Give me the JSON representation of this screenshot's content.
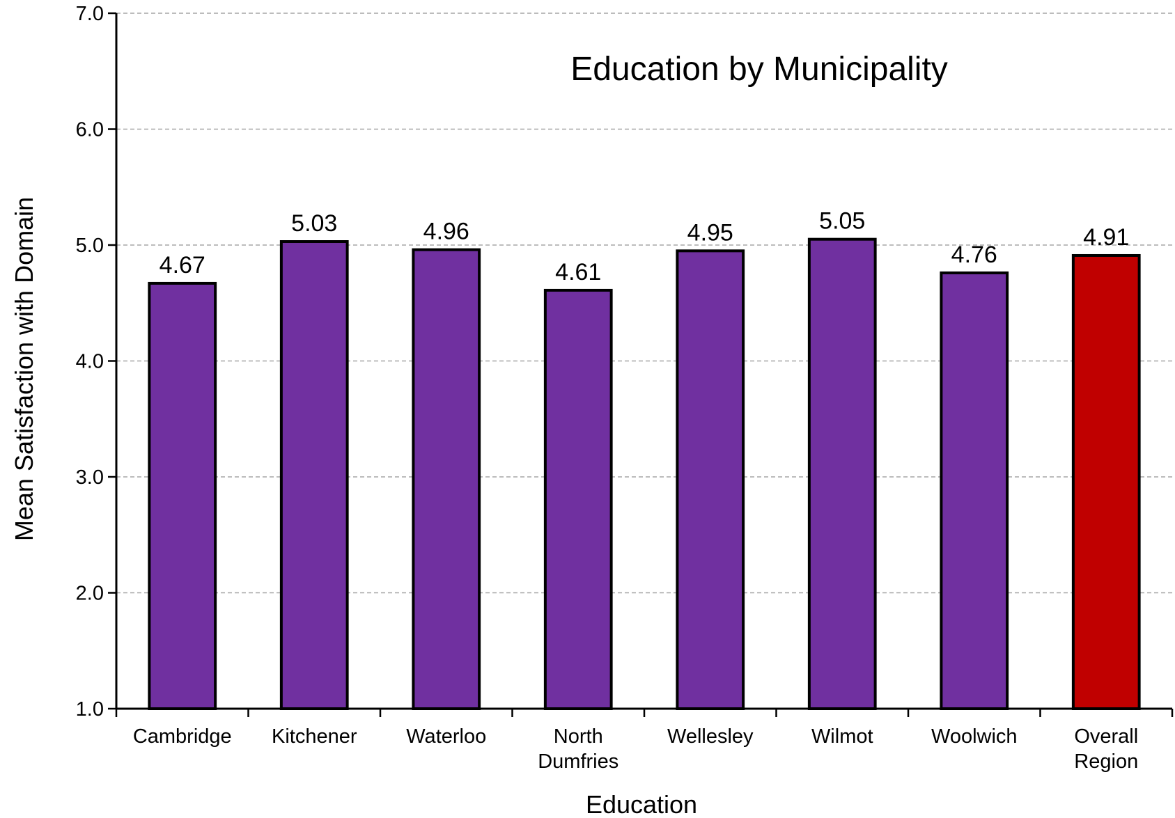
{
  "chart_data": {
    "type": "bar",
    "title": "Education by Municipality",
    "xlabel": "Education",
    "ylabel": "Mean Satisfaction with Domain",
    "ylim": [
      1.0,
      7.0
    ],
    "yticks": [
      "1.0",
      "2.0",
      "3.0",
      "4.0",
      "5.0",
      "6.0",
      "7.0"
    ],
    "categories": [
      [
        "Cambridge"
      ],
      [
        "Kitchener"
      ],
      [
        "Waterloo"
      ],
      [
        "North",
        "Dumfries"
      ],
      [
        "Wellesley"
      ],
      [
        "Wilmot"
      ],
      [
        "Woolwich"
      ],
      [
        "Overall",
        "Region"
      ]
    ],
    "values": [
      4.67,
      5.03,
      4.96,
      4.61,
      4.95,
      5.05,
      4.76,
      4.91
    ],
    "value_labels": [
      "4.67",
      "5.03",
      "4.96",
      "4.61",
      "4.95",
      "5.05",
      "4.76",
      "4.91"
    ],
    "bar_colors": [
      "#7030a0",
      "#7030a0",
      "#7030a0",
      "#7030a0",
      "#7030a0",
      "#7030a0",
      "#7030a0",
      "#c00000"
    ],
    "grid": true,
    "legend": "none"
  }
}
